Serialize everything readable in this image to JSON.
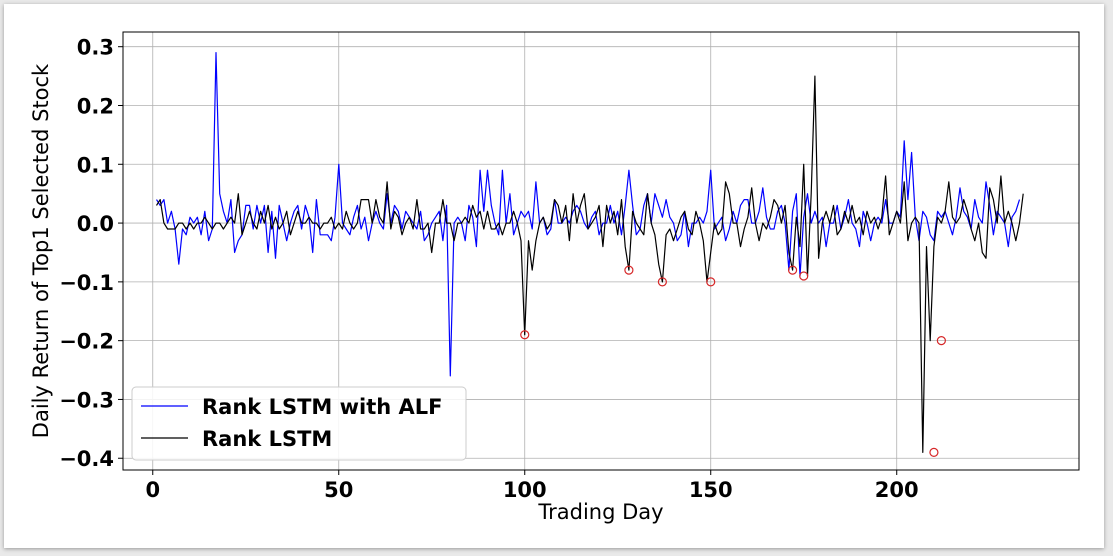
{
  "chart_data": {
    "type": "line",
    "xlabel": "Trading Day",
    "ylabel": "Daily Return of Top1 Selected Stock",
    "xlim": [
      -8,
      249
    ],
    "ylim": [
      -0.42,
      0.325
    ],
    "x_ticks": [
      0,
      50,
      100,
      150,
      200
    ],
    "x_tick_labels": [
      "0",
      "50",
      "100",
      "150",
      "200"
    ],
    "y_ticks": [
      0.3,
      0.2,
      0.1,
      0.0,
      -0.1,
      -0.2,
      -0.3,
      -0.4
    ],
    "y_tick_labels": [
      "0.3",
      "0.2",
      "0.1",
      "0.0",
      "−0.1",
      "−0.2",
      "−0.3",
      "−0.4"
    ],
    "grid": true,
    "legend_position": "lower-left",
    "series": [
      {
        "name": "Rank LSTM with ALF",
        "color": "#0000ff",
        "x_start": 1,
        "values": [
          0.04,
          0.03,
          0.04,
          0.0,
          0.02,
          -0.01,
          -0.07,
          -0.01,
          -0.02,
          0.01,
          0.0,
          0.01,
          -0.02,
          0.02,
          -0.03,
          -0.01,
          0.29,
          0.05,
          0.02,
          0.0,
          0.04,
          -0.05,
          -0.03,
          -0.02,
          0.03,
          0.03,
          -0.01,
          0.03,
          0.0,
          0.03,
          -0.05,
          0.02,
          -0.06,
          0.03,
          0.0,
          -0.03,
          0.0,
          0.02,
          0.03,
          -0.01,
          0.03,
          0.01,
          -0.05,
          0.04,
          -0.02,
          -0.02,
          -0.02,
          -0.03,
          0.01,
          0.1,
          0.0,
          -0.01,
          -0.02,
          0.01,
          0.03,
          -0.01,
          0.01,
          -0.03,
          0.0,
          0.02,
          0.0,
          -0.01,
          0.05,
          0.0,
          0.03,
          0.02,
          -0.01,
          0.02,
          0.01,
          0.0,
          -0.01,
          0.02,
          -0.03,
          -0.02,
          0.0,
          0.01,
          0.02,
          -0.03,
          0.03,
          -0.26,
          0.0,
          0.01,
          0.0,
          -0.03,
          0.03,
          0.01,
          -0.04,
          0.09,
          0.02,
          0.09,
          0.03,
          0.0,
          -0.02,
          0.09,
          0.0,
          0.05,
          -0.02,
          0.0,
          0.02,
          0.01,
          0.02,
          -0.01,
          0.07,
          0.0,
          0.01,
          -0.02,
          -0.01,
          0.04,
          0.0,
          0.0,
          0.01,
          0.0,
          0.02,
          0.03,
          0.02,
          0.0,
          -0.01,
          0.01,
          0.02,
          -0.02,
          0.0,
          0.0,
          0.03,
          0.0,
          0.02,
          -0.02,
          0.03,
          0.09,
          0.03,
          -0.02,
          -0.01,
          0.03,
          0.05,
          0.0,
          0.05,
          0.03,
          0.01,
          0.04,
          0.01,
          0.0,
          -0.03,
          -0.02,
          0.02,
          -0.04,
          0.0,
          0.0,
          0.01,
          0.0,
          0.02,
          0.09,
          -0.01,
          0.0,
          0.01,
          -0.03,
          -0.01,
          0.02,
          0.0,
          0.03,
          0.04,
          0.04,
          0.0,
          0.0,
          0.02,
          0.06,
          0.01,
          -0.01,
          -0.01,
          0.02,
          0.03,
          0.0,
          -0.08,
          0.02,
          0.05,
          -0.09,
          0.01,
          0.05,
          0.0,
          0.02,
          0.0,
          0.01,
          -0.04,
          0.0,
          0.0,
          0.03,
          -0.01,
          0.01,
          0.04,
          0.0,
          -0.01,
          -0.04,
          0.02,
          0.0,
          -0.03,
          0.0,
          0.01,
          0.0,
          0.04,
          0.0,
          0.0,
          0.02,
          0.01,
          0.14,
          0.04,
          0.12,
          0.01,
          -0.03,
          0.02,
          0.01,
          -0.02,
          -0.03,
          0.02,
          0.01,
          0.02,
          0.0,
          -0.02,
          0.01,
          0.06,
          0.02,
          0.01,
          -0.01,
          0.04,
          0.01,
          0.0,
          0.07,
          0.03,
          -0.02,
          0.02,
          0.01,
          0.0,
          -0.04,
          0.01,
          0.02,
          0.04
        ]
      },
      {
        "name": "Rank LSTM",
        "color": "#000000",
        "x_start": 1,
        "values": [
          0.03,
          0.04,
          0.0,
          -0.01,
          -0.01,
          -0.01,
          0.0,
          0.0,
          -0.01,
          0.0,
          -0.01,
          0.0,
          0.0,
          0.01,
          0.0,
          -0.01,
          0.0,
          0.0,
          -0.01,
          0.0,
          0.01,
          0.0,
          0.05,
          -0.02,
          0.0,
          0.02,
          0.0,
          -0.01,
          0.02,
          0.0,
          0.03,
          -0.01,
          0.01,
          -0.01,
          0.0,
          0.02,
          -0.02,
          0.0,
          0.02,
          0.0,
          0.0,
          0.01,
          0.0,
          0.0,
          -0.01,
          0.0,
          0.0,
          0.01,
          -0.01,
          0.0,
          -0.01,
          0.02,
          0.0,
          -0.01,
          0.0,
          0.04,
          0.04,
          0.04,
          0.0,
          0.04,
          0.01,
          0.0,
          0.07,
          -0.01,
          0.02,
          0.01,
          -0.02,
          0.0,
          0.01,
          -0.01,
          0.04,
          -0.01,
          -0.01,
          0.0,
          -0.05,
          0.0,
          0.0,
          0.04,
          0.0,
          0.0,
          -0.03,
          0.0,
          0.0,
          0.01,
          0.0,
          0.03,
          0.01,
          0.02,
          -0.01,
          0.02,
          -0.01,
          -0.01,
          0.0,
          -0.02,
          0.0,
          0.0,
          0.02,
          0.0,
          -0.03,
          -0.19,
          -0.03,
          -0.08,
          -0.03,
          0.0,
          0.01,
          -0.01,
          0.0,
          0.04,
          0.03,
          0.0,
          0.03,
          -0.03,
          0.05,
          0.0,
          0.03,
          0.05,
          -0.01,
          0.0,
          0.01,
          0.03,
          -0.04,
          0.03,
          0.0,
          0.02,
          -0.02,
          0.04,
          -0.04,
          -0.08,
          0.02,
          0.0,
          -0.01,
          -0.02,
          0.05,
          0.0,
          -0.02,
          -0.07,
          -0.1,
          -0.02,
          -0.01,
          -0.03,
          -0.01,
          0.01,
          0.02,
          -0.01,
          -0.02,
          0.02,
          0.0,
          -0.03,
          -0.1,
          -0.05,
          0.0,
          -0.02,
          -0.01,
          0.07,
          0.05,
          0.0,
          0.0,
          -0.04,
          -0.01,
          0.01,
          0.06,
          0.0,
          -0.03,
          0.0,
          -0.01,
          0.01,
          0.04,
          0.03,
          0.0,
          0.03,
          -0.05,
          -0.08,
          0.01,
          -0.04,
          0.1,
          -0.09,
          0.05,
          0.25,
          -0.06,
          0.0,
          0.02,
          0.0,
          0.03,
          -0.02,
          -0.01,
          0.02,
          0.0,
          0.03,
          0.0,
          0.01,
          -0.02,
          0.02,
          0.0,
          0.01,
          -0.01,
          0.01,
          0.08,
          -0.02,
          0.0,
          0.02,
          0.0,
          0.07,
          -0.03,
          0.0,
          0.01,
          0.0,
          -0.39,
          -0.04,
          -0.2,
          -0.04,
          0.01,
          0.0,
          0.02,
          0.07,
          0.01,
          0.0,
          0.01,
          0.04,
          0.02,
          -0.01,
          -0.03,
          0.0,
          -0.05,
          -0.06,
          0.06,
          0.04,
          0.0,
          0.08,
          0.0,
          0.02,
          0.0,
          -0.03,
          0.0,
          0.05
        ]
      }
    ],
    "highlighted_points": {
      "marker": "open circle",
      "color": "#d62728",
      "points": [
        {
          "x": 100,
          "y": -0.19
        },
        {
          "x": 128,
          "y": -0.08
        },
        {
          "x": 137,
          "y": -0.1
        },
        {
          "x": 150,
          "y": -0.1
        },
        {
          "x": 172,
          "y": -0.08
        },
        {
          "x": 175,
          "y": -0.09
        },
        {
          "x": 210,
          "y": -0.39
        },
        {
          "x": 212,
          "y": -0.2
        }
      ]
    }
  }
}
